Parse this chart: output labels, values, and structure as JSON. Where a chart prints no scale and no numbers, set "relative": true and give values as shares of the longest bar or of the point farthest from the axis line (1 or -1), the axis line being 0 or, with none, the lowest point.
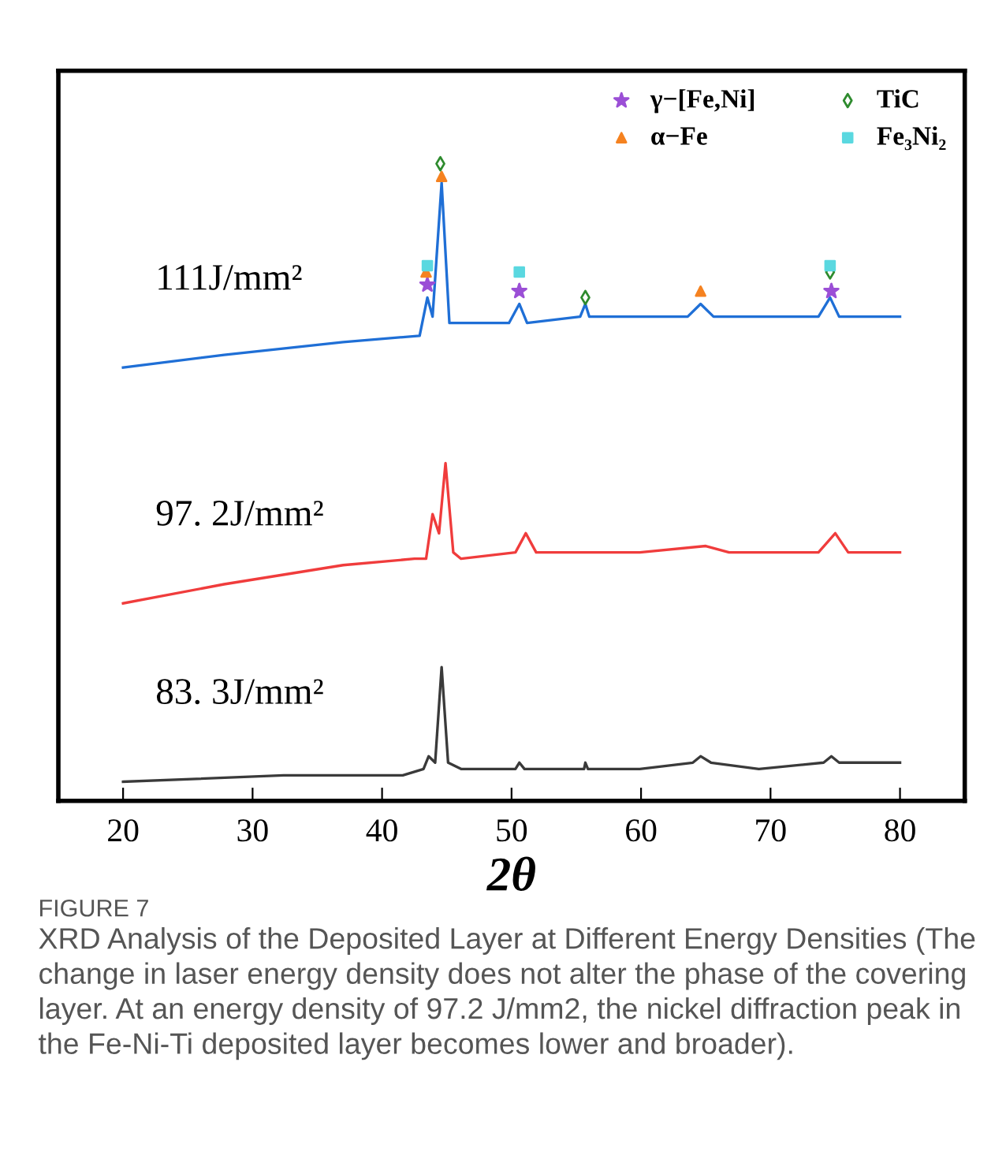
{
  "chart_data": {
    "type": "line",
    "relative": true,
    "xlabel": "2θ",
    "xlim": [
      15,
      85
    ],
    "xticks": [
      20,
      30,
      40,
      50,
      60,
      70,
      80
    ],
    "legend": "top right",
    "grid": false,
    "series": [
      {
        "name": "111J/mm²",
        "color": "#1f6fd6",
        "x": [
          20,
          27.8,
          37,
          42.9,
          43.5,
          43.9,
          44.6,
          45.2,
          46.1,
          49.8,
          50.6,
          51.2,
          55.3,
          55.7,
          56.0,
          59.9,
          63.6,
          64.6,
          65.6,
          69.1,
          73.7,
          74.6,
          75.3,
          80
        ],
        "values": [
          0.68,
          0.7,
          0.72,
          0.73,
          0.79,
          0.76,
          0.97,
          0.75,
          0.75,
          0.75,
          0.78,
          0.75,
          0.76,
          0.78,
          0.76,
          0.76,
          0.76,
          0.78,
          0.76,
          0.76,
          0.76,
          0.79,
          0.76,
          0.76
        ]
      },
      {
        "name": "97. 2J/mm²",
        "color": "#f03c3c",
        "x": [
          20,
          27.8,
          37,
          42.5,
          43.4,
          43.9,
          44.4,
          44.9,
          45.5,
          46.1,
          50.3,
          51.1,
          51.9,
          59.9,
          65.0,
          66.8,
          73.7,
          75.0,
          76.0,
          80
        ],
        "values": [
          0.31,
          0.34,
          0.37,
          0.38,
          0.38,
          0.45,
          0.42,
          0.53,
          0.39,
          0.38,
          0.39,
          0.42,
          0.39,
          0.39,
          0.4,
          0.39,
          0.39,
          0.42,
          0.39,
          0.39
        ]
      },
      {
        "name": "83. 3J/mm²",
        "color": "#3a3a3a",
        "x": [
          20,
          32.4,
          41.6,
          43.2,
          43.6,
          44.1,
          44.6,
          45.1,
          46.1,
          50.3,
          50.6,
          51.0,
          55.6,
          55.7,
          55.9,
          59.9,
          64.0,
          64.6,
          65.4,
          69.1,
          74.1,
          74.7,
          75.3,
          80
        ],
        "values": [
          0.03,
          0.04,
          0.04,
          0.05,
          0.07,
          0.06,
          0.21,
          0.06,
          0.05,
          0.05,
          0.06,
          0.05,
          0.05,
          0.06,
          0.05,
          0.05,
          0.06,
          0.07,
          0.06,
          0.05,
          0.06,
          0.07,
          0.06,
          0.06
        ]
      },
      {
        "type": "scatter",
        "name": "γ−[Fe,Ni]",
        "color": "#9b4fd6",
        "marker": "star",
        "x": [
          43.5,
          50.6,
          74.7
        ],
        "values": [
          0.81,
          0.8,
          0.8
        ]
      },
      {
        "type": "scatter",
        "name": "α−Fe",
        "color": "#f58220",
        "marker": "triangle",
        "x": [
          43.4,
          44.6,
          64.6
        ],
        "values": [
          0.83,
          0.98,
          0.8
        ]
      },
      {
        "type": "scatter",
        "name": "TiC",
        "color": "#2e8b2e",
        "marker": "diamond",
        "x": [
          44.5,
          55.7,
          74.6
        ],
        "values": [
          1.0,
          0.79,
          0.83
        ]
      },
      {
        "type": "scatter",
        "name": "Fe₃Ni₂",
        "color": "#5ad8e0",
        "marker": "square",
        "x": [
          43.5,
          50.6,
          74.6
        ],
        "values": [
          0.84,
          0.83,
          0.84
        ]
      }
    ],
    "annotations": [
      "FIGURE 7",
      "XRD Analysis of the Deposited Layer at Different Energy Densities (The change in laser energy density does not alter the phase of the covering layer. At an energy density of 97.2 J/mm2, the nickel diffraction peak in the Fe-Ni-Ti deposited layer becomes lower and broader)."
    ]
  }
}
